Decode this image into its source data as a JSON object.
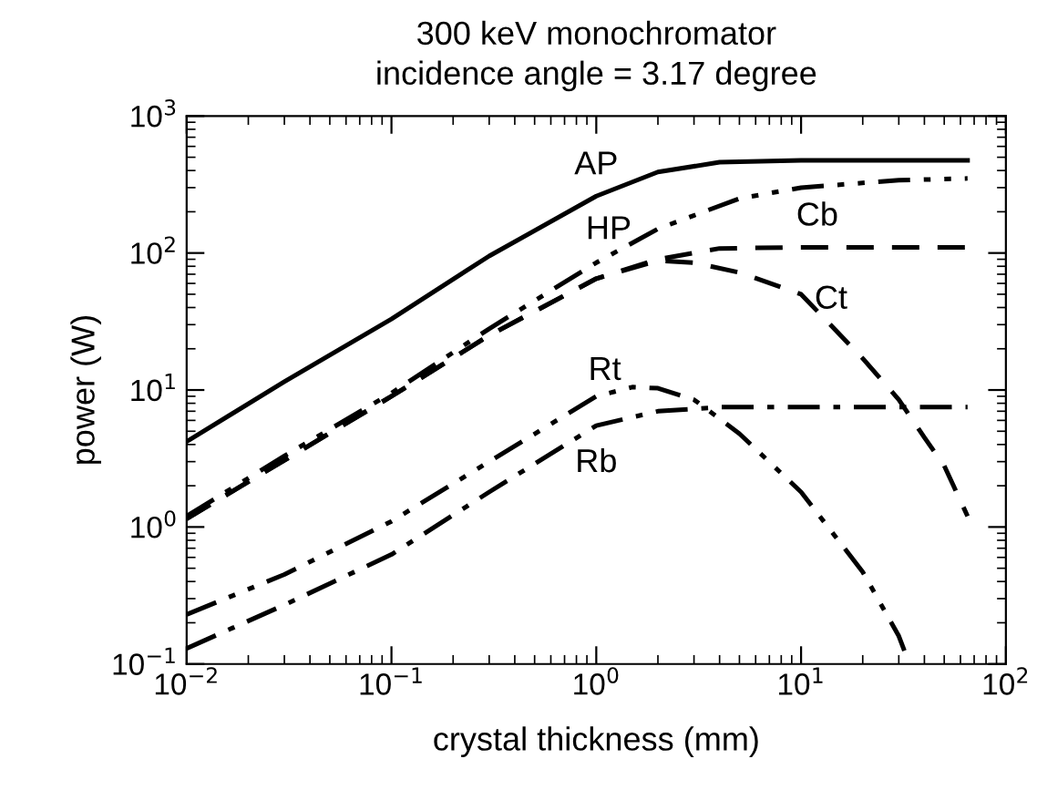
{
  "chart_data": {
    "type": "line",
    "title": "300 keV monochromator",
    "subtitle": "incidence angle = 3.17 degree",
    "xlabel": "crystal thickness (mm)",
    "ylabel": "power (W)",
    "log": "xy",
    "grid": false,
    "xlim": [
      0.01,
      100
    ],
    "ylim": [
      0.1,
      1000
    ],
    "xticks": [
      {
        "value": 0.01,
        "label": "10$^{−2}$"
      },
      {
        "value": 0.1,
        "label": "10$^{−1}$"
      },
      {
        "value": 1,
        "label": "10$^{0}$"
      },
      {
        "value": 10,
        "label": "10$^{1}$"
      },
      {
        "value": 100,
        "label": "10$^{2}$"
      }
    ],
    "yticks": [
      {
        "value": 0.1,
        "label": "10$^{−1}$"
      },
      {
        "value": 1,
        "label": "10$^{0}$"
      },
      {
        "value": 10,
        "label": "10$^{1}$"
      },
      {
        "value": 100,
        "label": "10$^{2}$"
      },
      {
        "value": 1000,
        "label": "10$^{3}$"
      }
    ],
    "series": [
      {
        "name": "AP",
        "color": "#000000",
        "line_style": "solid",
        "x": [
          0.01,
          0.03,
          0.1,
          0.3,
          1,
          2,
          4,
          10,
          65
        ],
        "values": [
          4.2,
          11.5,
          33,
          95,
          260,
          390,
          460,
          475,
          475
        ]
      },
      {
        "name": "HP",
        "color": "#000000",
        "line_style": "dashdotdot",
        "x": [
          0.01,
          0.03,
          0.1,
          0.3,
          1,
          2,
          5,
          10,
          30,
          65
        ],
        "values": [
          1.2,
          3.3,
          9.5,
          28,
          85,
          150,
          250,
          300,
          340,
          350
        ]
      },
      {
        "name": "Cb",
        "color": "#000000",
        "line_style": "dashed",
        "x": [
          0.01,
          0.1,
          0.3,
          1,
          2,
          4,
          10,
          65
        ],
        "values": [
          1.15,
          9,
          25,
          65,
          90,
          108,
          110,
          110
        ]
      },
      {
        "name": "Ct",
        "color": "#000000",
        "line_style": "dashed",
        "x": [
          0.01,
          0.1,
          0.3,
          1,
          2,
          3,
          5,
          10,
          20,
          30,
          40,
          50,
          65
        ],
        "values": [
          1.15,
          9,
          25,
          65,
          88,
          85,
          72,
          50,
          17,
          8.5,
          4.5,
          2.8,
          1.2
        ]
      },
      {
        "name": "Rt",
        "color": "#000000",
        "line_style": "dashdotdot",
        "x": [
          0.01,
          0.03,
          0.1,
          0.3,
          1,
          1.5,
          2,
          3,
          5,
          10,
          20,
          30,
          33
        ],
        "values": [
          0.23,
          0.45,
          1.1,
          3,
          9,
          10.5,
          10.3,
          8.5,
          4.8,
          1.8,
          0.47,
          0.16,
          0.11
        ]
      },
      {
        "name": "Rb",
        "color": "#000000",
        "line_style": "dashdot",
        "x": [
          0.01,
          0.03,
          0.1,
          0.3,
          1,
          2,
          4,
          10,
          65
        ],
        "values": [
          0.13,
          0.27,
          0.63,
          1.8,
          5.5,
          7,
          7.5,
          7.5,
          7.5
        ]
      }
    ]
  }
}
